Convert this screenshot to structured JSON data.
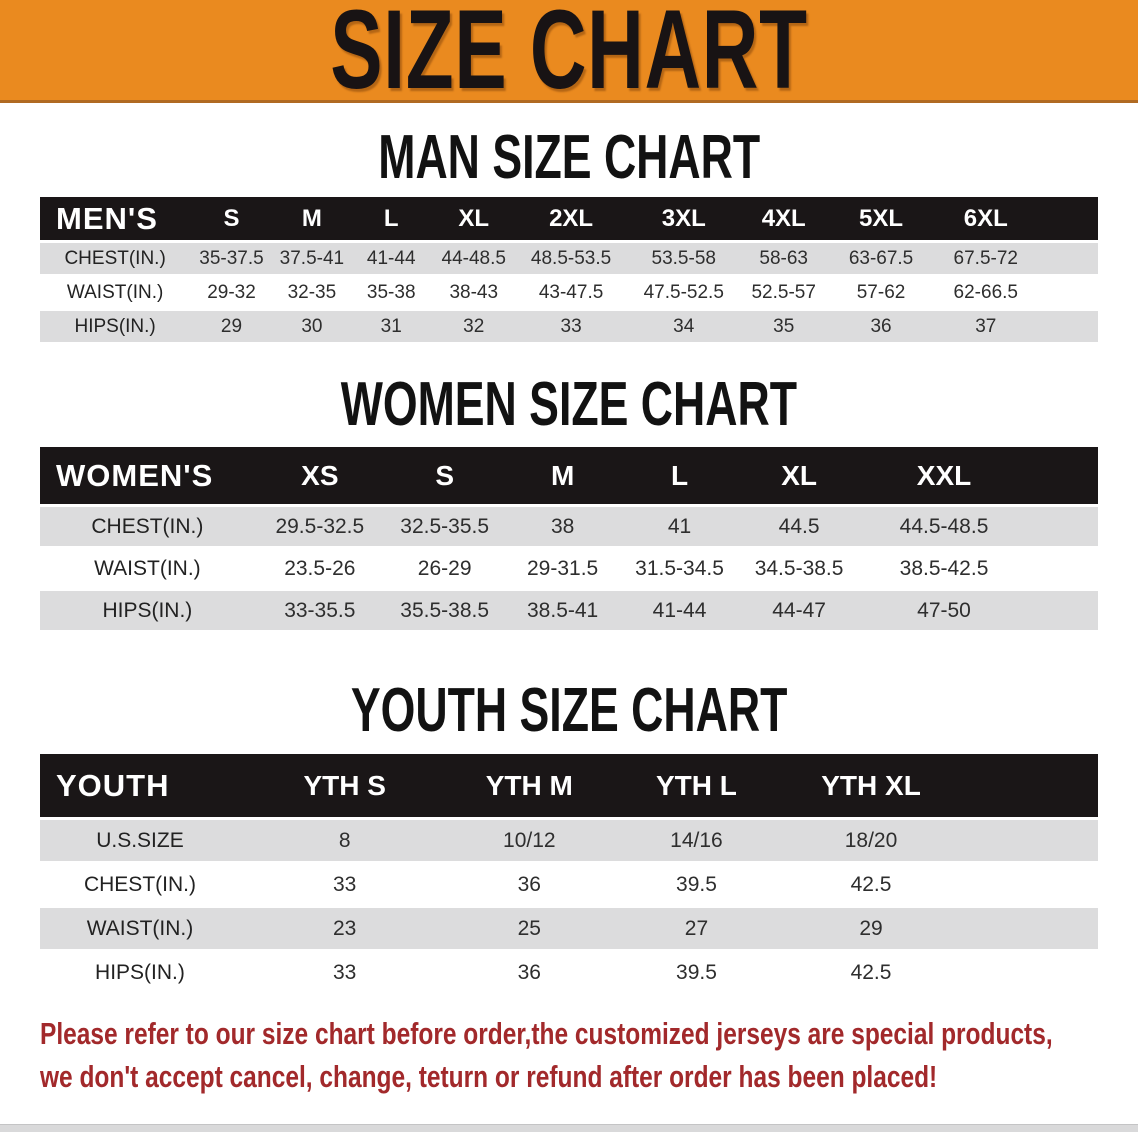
{
  "banner": {
    "title": "SIZE CHART"
  },
  "sections": [
    {
      "title": "MAN SIZE CHART",
      "group_label": "MEN'S",
      "columns": [
        "S",
        "M",
        "L",
        "XL",
        "2XL",
        "3XL",
        "4XL",
        "5XL",
        "6XL"
      ],
      "rows": [
        {
          "label": "CHEST(IN.)",
          "values": [
            "35-37.5",
            "37.5-41",
            "41-44",
            "44-48.5",
            "48.5-53.5",
            "53.5-58",
            "58-63",
            "63-67.5",
            "67.5-72"
          ]
        },
        {
          "label": "WAIST(IN.)",
          "values": [
            "29-32",
            "32-35",
            "35-38",
            "38-43",
            "43-47.5",
            "47.5-52.5",
            "52.5-57",
            "57-62",
            "62-66.5"
          ]
        },
        {
          "label": "HIPS(IN.)",
          "values": [
            "29",
            "30",
            "31",
            "32",
            "33",
            "34",
            "35",
            "36",
            "37"
          ]
        }
      ]
    },
    {
      "title": "WOMEN SIZE CHART",
      "group_label": "WOMEN'S",
      "columns": [
        "XS",
        "S",
        "M",
        "L",
        "XL",
        "XXL"
      ],
      "rows": [
        {
          "label": "CHEST(IN.)",
          "values": [
            "29.5-32.5",
            "32.5-35.5",
            "38",
            "41",
            "44.5",
            "44.5-48.5"
          ]
        },
        {
          "label": "WAIST(IN.)",
          "values": [
            "23.5-26",
            "26-29",
            "29-31.5",
            "31.5-34.5",
            "34.5-38.5",
            "38.5-42.5"
          ]
        },
        {
          "label": "HIPS(IN.)",
          "values": [
            "33-35.5",
            "35.5-38.5",
            "38.5-41",
            "41-44",
            "44-47",
            "47-50"
          ]
        }
      ]
    },
    {
      "title": "YOUTH SIZE CHART",
      "group_label": "YOUTH",
      "columns": [
        "YTH S",
        "YTH M",
        "YTH L",
        "YTH XL"
      ],
      "rows": [
        {
          "label": "U.S.SIZE",
          "values": [
            "8",
            "10/12",
            "14/16",
            "18/20"
          ]
        },
        {
          "label": "CHEST(IN.)",
          "values": [
            "33",
            "36",
            "39.5",
            "42.5"
          ]
        },
        {
          "label": "WAIST(IN.)",
          "values": [
            "23",
            "25",
            "27",
            "29"
          ]
        },
        {
          "label": "HIPS(IN.)",
          "values": [
            "33",
            "36",
            "39.5",
            "42.5"
          ]
        }
      ]
    }
  ],
  "disclaimer": {
    "lines": [
      "Please refer to our size chart before order,the customized jerseys are special products,",
      "we don't accept cancel, change, teturn or refund after order has been placed!"
    ]
  },
  "colors": {
    "banner_orange": "#ea8a1f",
    "banner_border": "#b06a22",
    "table_header_black": "#1a1617",
    "row_shade_gray": "#dcdcdd",
    "disclaimer_red": "#a2292b",
    "title_black": "#181314"
  }
}
